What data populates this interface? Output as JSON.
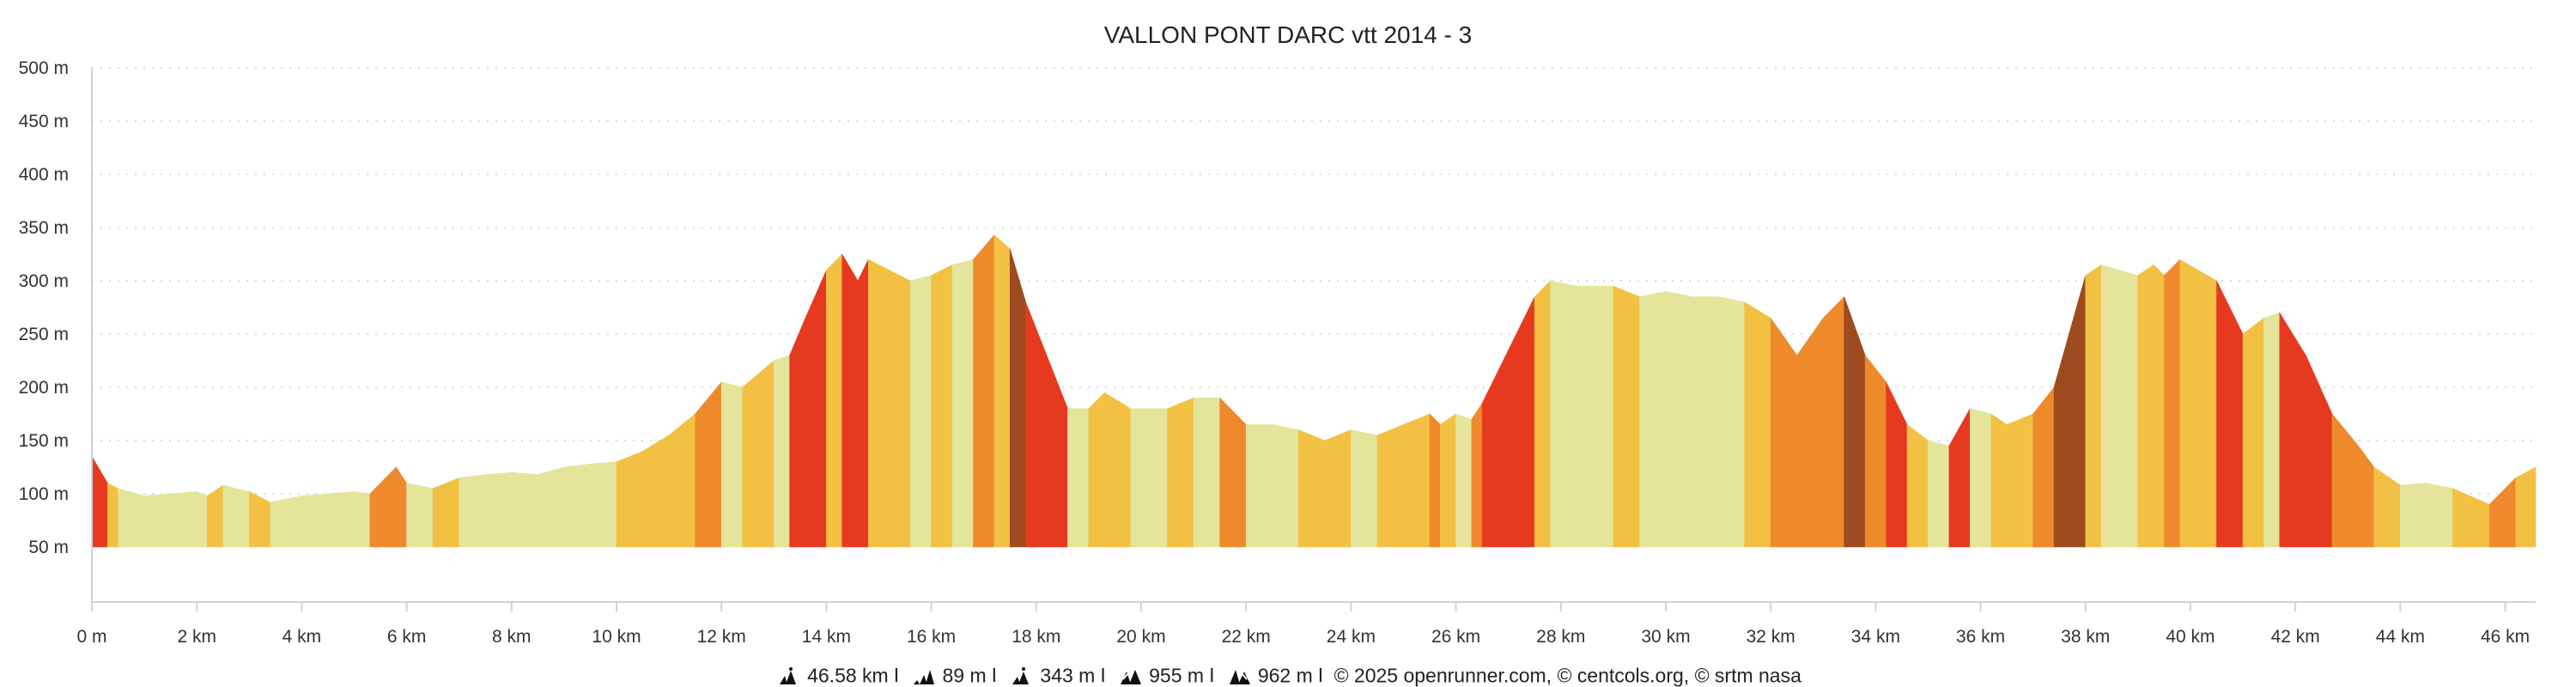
{
  "chart_data": {
    "type": "area",
    "title": "VALLON PONT DARC vtt 2014 - 3",
    "xlabel": "",
    "ylabel": "",
    "xlim": [
      0,
      46.58
    ],
    "ylim": [
      50,
      500
    ],
    "grid": true,
    "y_ticks": [
      "50 m",
      "100 m",
      "150 m",
      "200 m",
      "250 m",
      "300 m",
      "350 m",
      "400 m",
      "450 m",
      "500 m"
    ],
    "y_tick_values": [
      50,
      100,
      150,
      200,
      250,
      300,
      350,
      400,
      450,
      500
    ],
    "x_ticks": [
      "0 m",
      "2 km",
      "4 km",
      "6 km",
      "8 km",
      "10 km",
      "12 km",
      "14 km",
      "16 km",
      "18 km",
      "20 km",
      "22 km",
      "24 km",
      "26 km",
      "28 km",
      "30 km",
      "32 km",
      "34 km",
      "36 km",
      "38 km",
      "40 km",
      "42 km",
      "44 km",
      "46 km"
    ],
    "x_tick_values": [
      0,
      2,
      4,
      6,
      8,
      10,
      12,
      14,
      16,
      18,
      20,
      22,
      24,
      26,
      28,
      30,
      32,
      34,
      36,
      38,
      40,
      42,
      44,
      46
    ],
    "grade_colors": {
      "flat": "#e4e49a",
      "gentle": "#f2c144",
      "moderate": "#ee8a2c",
      "steep": "#e63a20",
      "very_steep": "#9c4a1e"
    },
    "series": [
      {
        "name": "elevation",
        "x": [
          0,
          0.3,
          0.5,
          1,
          1.5,
          2,
          2.2,
          2.5,
          3,
          3.4,
          4,
          5,
          5.3,
          5.8,
          6,
          6.5,
          7,
          7.5,
          8,
          8.5,
          9,
          9.5,
          10,
          10.5,
          11,
          11.5,
          12,
          12.4,
          13,
          13.3,
          13.6,
          14,
          14.3,
          14.6,
          14.8,
          15.2,
          15.6,
          16,
          16.4,
          16.8,
          17.2,
          17.5,
          17.8,
          18.2,
          18.6,
          19,
          19.3,
          19.8,
          20.5,
          21,
          21.5,
          22,
          22.5,
          23,
          23.5,
          24,
          24.5,
          25,
          25.5,
          25.7,
          26,
          26.3,
          26.5,
          27,
          27.5,
          27.8,
          28.3,
          29,
          29.5,
          30,
          30.5,
          31,
          31.5,
          32,
          32.5,
          33,
          33.4,
          33.8,
          34.2,
          34.6,
          35,
          35.4,
          35.8,
          36.2,
          36.5,
          37,
          37.4,
          37.8,
          38,
          38.3,
          39,
          39.3,
          39.5,
          39.8,
          40.5,
          41,
          41.4,
          41.7,
          42.2,
          42.7,
          43.2,
          43.5,
          44,
          44.5,
          45,
          45.7,
          46.2,
          46.58
        ],
        "y": [
          135,
          110,
          105,
          98,
          100,
          102,
          98,
          108,
          102,
          92,
          98,
          102,
          100,
          125,
          110,
          105,
          115,
          118,
          120,
          118,
          125,
          128,
          130,
          140,
          155,
          175,
          205,
          200,
          225,
          230,
          265,
          310,
          325,
          300,
          320,
          310,
          300,
          305,
          315,
          320,
          343,
          330,
          280,
          230,
          180,
          180,
          195,
          180,
          180,
          190,
          190,
          165,
          165,
          160,
          150,
          160,
          155,
          165,
          175,
          165,
          175,
          170,
          185,
          235,
          285,
          300,
          295,
          295,
          285,
          290,
          285,
          285,
          280,
          265,
          230,
          265,
          285,
          230,
          205,
          165,
          150,
          145,
          180,
          175,
          165,
          175,
          200,
          270,
          305,
          315,
          305,
          315,
          305,
          320,
          300,
          250,
          265,
          270,
          230,
          175,
          145,
          125,
          108,
          110,
          105,
          90,
          115,
          125
        ]
      }
    ]
  },
  "footer": {
    "distance": "46.58 km",
    "min_elevation": "89 m",
    "max_elevation": "343 m",
    "total_ascent": "955 m",
    "total_descent": "962 m",
    "separator": "I",
    "credits": "© 2025 openrunner.com, © centcols.org, © srtm nasa"
  }
}
